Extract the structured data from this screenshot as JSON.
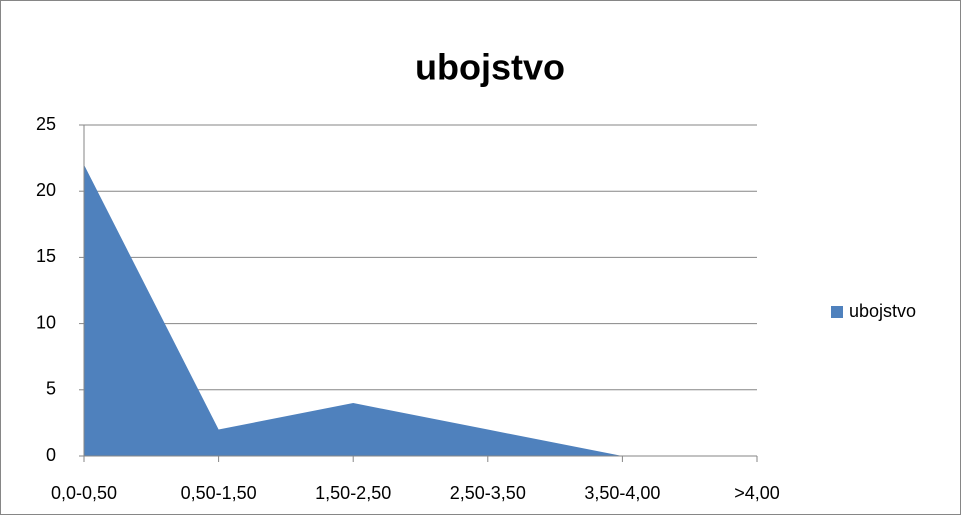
{
  "chart_data": {
    "type": "area",
    "title": "ubojstvo",
    "categories": [
      "0,0-0,50",
      "0,50-1,50",
      "1,50-2,50",
      "2,50-3,50",
      "3,50-4,00",
      ">4,00"
    ],
    "series": [
      {
        "name": "ubojstvo",
        "color": "#4f81bd",
        "values": [
          22,
          2,
          4,
          2,
          0,
          0
        ]
      }
    ],
    "ylim": [
      0,
      25
    ],
    "yticks": [
      0,
      5,
      10,
      15,
      20,
      25
    ],
    "grid": true,
    "legend": "right"
  }
}
